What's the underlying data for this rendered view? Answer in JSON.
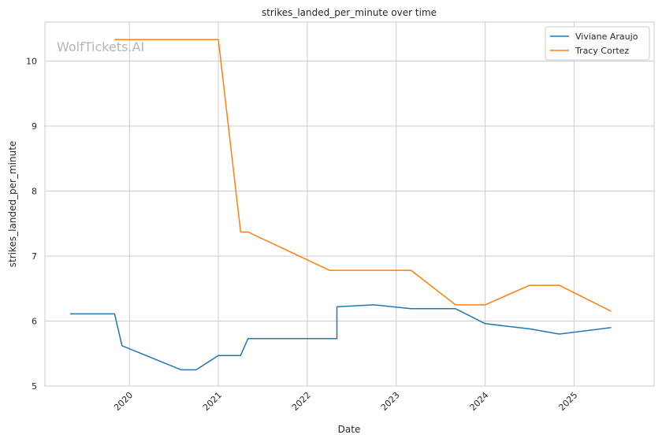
{
  "chart_data": {
    "type": "line",
    "title": "strikes_landed_per_minute over time",
    "xlabel": "Date",
    "ylabel": "strikes_landed_per_minute",
    "watermark": "WolfTickets.AI",
    "xlim": [
      2019.05,
      2025.9
    ],
    "ylim": [
      5,
      10.6
    ],
    "yticks": [
      5,
      6,
      7,
      8,
      9,
      10
    ],
    "xticks": [
      "2020",
      "2021",
      "2022",
      "2023",
      "2024",
      "2025"
    ],
    "grid": true,
    "legend_position": "top-right",
    "series": [
      {
        "name": "Viviane Araujo",
        "color": "#1f77b4",
        "points": [
          [
            "2019-05",
            6.11
          ],
          [
            "2019-11",
            6.11
          ],
          [
            "2019-12",
            5.62
          ],
          [
            "2020-08",
            5.25
          ],
          [
            "2020-10",
            5.25
          ],
          [
            "2021-01",
            5.47
          ],
          [
            "2021-04",
            5.47
          ],
          [
            "2021-05",
            5.73
          ],
          [
            "2022-05",
            5.73
          ],
          [
            "2022-05",
            6.22
          ],
          [
            "2022-10",
            6.25
          ],
          [
            "2023-03",
            6.19
          ],
          [
            "2023-09",
            6.19
          ],
          [
            "2024-01",
            5.96
          ],
          [
            "2024-07",
            5.88
          ],
          [
            "2024-11",
            5.8
          ],
          [
            "2025-06",
            5.9
          ]
        ]
      },
      {
        "name": "Tracy Cortez",
        "color": "#ff7f0e",
        "points": [
          [
            "2019-11",
            10.33
          ],
          [
            "2021-01",
            10.33
          ],
          [
            "2021-04",
            7.37
          ],
          [
            "2021-05",
            7.37
          ],
          [
            "2022-04",
            6.78
          ],
          [
            "2023-03",
            6.78
          ],
          [
            "2023-09",
            6.25
          ],
          [
            "2024-01",
            6.25
          ],
          [
            "2024-07",
            6.55
          ],
          [
            "2024-11",
            6.55
          ],
          [
            "2025-06",
            6.15
          ]
        ]
      }
    ]
  }
}
